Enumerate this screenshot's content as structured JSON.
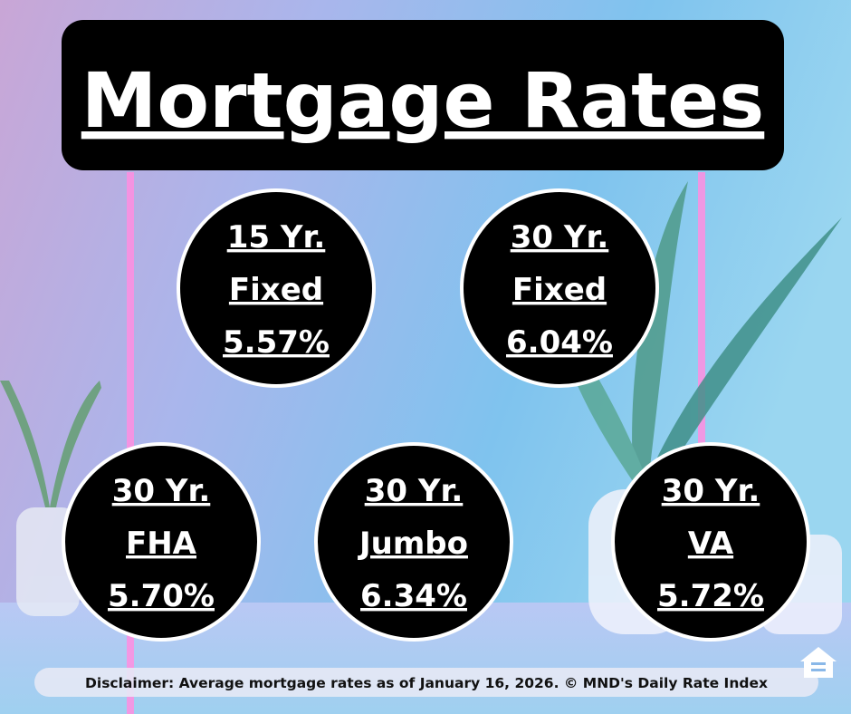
{
  "header": {
    "title": "Mortgage Rates"
  },
  "rates": [
    {
      "lines": [
        "15 Yr.",
        "Fixed"
      ],
      "rate": "5.57%"
    },
    {
      "lines": [
        "30 Yr.",
        "Fixed"
      ],
      "rate": "6.04%"
    },
    {
      "lines": [
        "30 Yr.",
        "FHA"
      ],
      "rate": "5.70%"
    },
    {
      "lines": [
        "30 Yr.",
        "Jumbo"
      ],
      "rate": "6.34%"
    },
    {
      "lines": [
        "30 Yr.",
        "VA"
      ],
      "rate": "5.72%"
    }
  ],
  "footer": {
    "disclaimer": "Disclaimer: Average mortgage rates as of January 16, 2026. © MND's Daily Rate Index"
  }
}
